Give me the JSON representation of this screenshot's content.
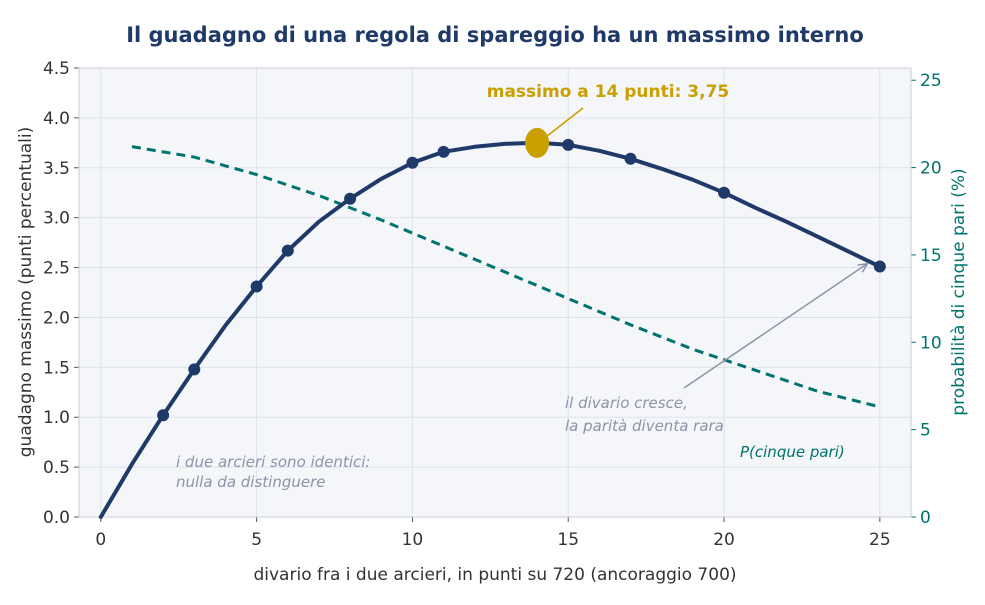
{
  "chart_data": {
    "type": "line",
    "title": "Il guadagno di una regola di spareggio ha un massimo interno",
    "xlabel": "divario fra i due arcieri, in punti su 720 (ancoraggio 700)",
    "ylabel_left": "guadagno massimo (punti percentuali)",
    "ylabel_right": "probabilità di cinque pari (%)",
    "xlim": [
      -0.7,
      26
    ],
    "ylim_left": [
      0,
      4.5
    ],
    "ylim_right": [
      0,
      25.7
    ],
    "x_ticks": [
      0,
      5,
      10,
      15,
      20,
      25
    ],
    "y_left_ticks": [
      "0.0",
      "0.5",
      "1.0",
      "1.5",
      "2.0",
      "2.5",
      "3.0",
      "3.5",
      "4.0",
      "4.5"
    ],
    "y_right_ticks": [
      "0",
      "5",
      "10",
      "15",
      "20",
      "25"
    ],
    "grid": true,
    "series": [
      {
        "name": "",
        "axis": "left",
        "style": "solid",
        "x": [
          0,
          1,
          2,
          3,
          4,
          5,
          6,
          7,
          8,
          9,
          10,
          11,
          12,
          13,
          14,
          15,
          16,
          17,
          18,
          19,
          20,
          21,
          22,
          23,
          24,
          25
        ],
        "values": [
          0.0,
          0.53,
          1.02,
          1.48,
          1.92,
          2.31,
          2.67,
          2.96,
          3.19,
          3.39,
          3.55,
          3.66,
          3.71,
          3.74,
          3.75,
          3.73,
          3.67,
          3.59,
          3.49,
          3.38,
          3.25,
          3.1,
          2.96,
          2.81,
          2.66,
          2.51
        ],
        "marker_x": [
          2,
          3,
          5,
          6,
          8,
          10,
          11,
          15,
          17,
          20,
          25
        ],
        "color": "#1f3a68"
      },
      {
        "name": "P(cinque pari)",
        "axis": "right",
        "style": "dashed",
        "x": [
          1,
          3,
          5,
          7,
          9,
          11,
          13,
          15,
          17,
          19,
          21,
          23,
          25
        ],
        "values": [
          21.2,
          20.6,
          19.6,
          18.4,
          17.0,
          15.5,
          14.0,
          12.5,
          11.0,
          9.6,
          8.4,
          7.2,
          6.3
        ],
        "color": "#00736e"
      }
    ],
    "highlight": {
      "x": 14,
      "y": 3.75,
      "color": "#c9a000"
    },
    "annotations": [
      {
        "text": "massimo a 14 punti: 3,75",
        "color": "#c9a000"
      },
      {
        "line1": "il divario cresce,",
        "line2": "la parità diventa rara",
        "color": "#8c94a8"
      },
      {
        "line1": "i due arcieri sono identici:",
        "line2": "nulla da distinguere",
        "color": "#8c94a8"
      },
      {
        "text": "P(cinque pari)",
        "color": "#00736e"
      }
    ]
  }
}
